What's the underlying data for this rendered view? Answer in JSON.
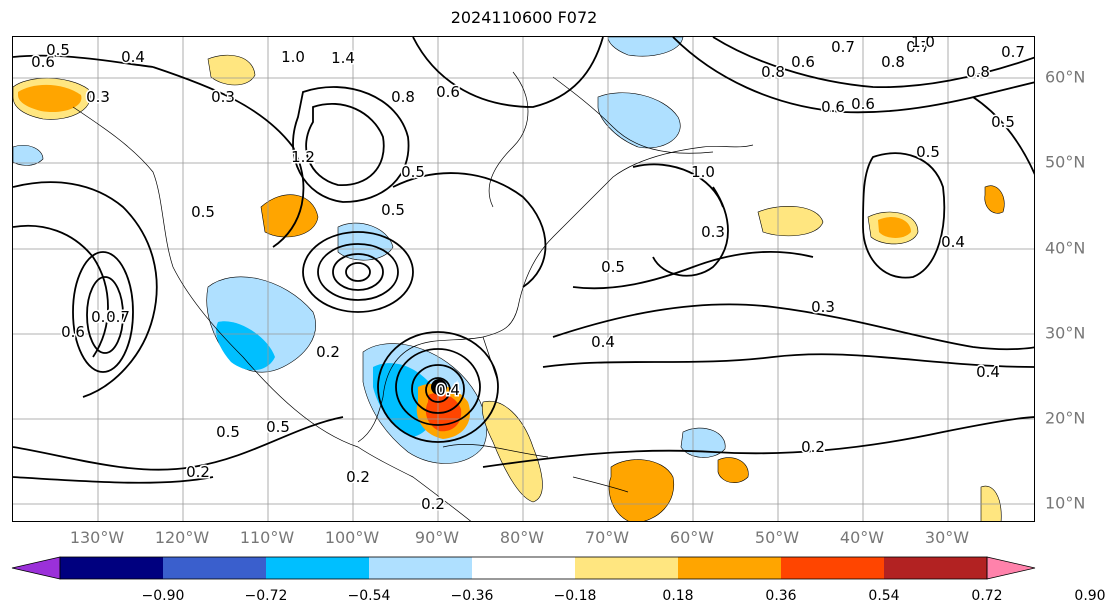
{
  "title": "2024110600 F072",
  "lon_labels": [
    "130°W",
    "120°W",
    "110°W",
    "100°W",
    "90°W",
    "80°W",
    "70°W",
    "60°W",
    "50°W",
    "40°W",
    "30°W"
  ],
  "lat_labels": [
    "60°N",
    "50°N",
    "40°N",
    "30°N",
    "20°N",
    "10°N"
  ],
  "colorbar": {
    "ticks": [
      "−0.90",
      "−0.72",
      "−0.54",
      "−0.36",
      "−0.18",
      "0.18",
      "0.36",
      "0.54",
      "0.72",
      "0.90"
    ],
    "colors": [
      "#9b30d9",
      "#00007f",
      "#3a5fcd",
      "#00bfff",
      "#afe0ff",
      "#ffffff",
      "#ffe680",
      "#ffa500",
      "#ff4500",
      "#b22222",
      "#ff82ab"
    ]
  },
  "contour_labels": [
    "0.6",
    "0.5",
    "0.4",
    "0.3",
    "1.0",
    "1.4",
    "0.8",
    "0.6",
    "1.2",
    "0.5",
    "0.5",
    "0.5",
    "0.3",
    "0.6",
    "0.7",
    "0.6",
    "0.8",
    "0.7",
    "0.8",
    "0.7",
    "1.0",
    "0.6",
    "0.8",
    "0.5",
    "0.5",
    "0.4",
    "0.3",
    "0.6",
    "0.8",
    "0.7",
    "0.2",
    "0.5",
    "0.5",
    "0.2",
    "0.2",
    "0.2",
    "0.4",
    "0.3",
    "0.4",
    "0.5",
    "0.2",
    "0.4",
    "1.0"
  ],
  "storm_marker": "black-dot"
}
